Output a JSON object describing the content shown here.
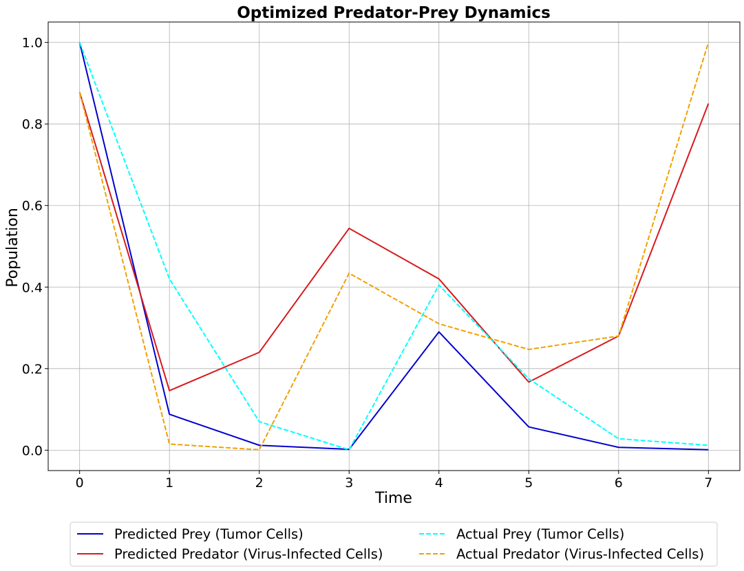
{
  "chart_data": {
    "type": "line",
    "title": "Optimized Predator-Prey Dynamics",
    "xlabel": "Time",
    "ylabel": "Population",
    "x": [
      0,
      1,
      2,
      3,
      4,
      5,
      6,
      7
    ],
    "xlim": [
      -0.35,
      7.35
    ],
    "ylim": [
      -0.05,
      1.05
    ],
    "xticks": [
      "0",
      "1",
      "2",
      "3",
      "4",
      "5",
      "6",
      "7"
    ],
    "yticks": [
      "0.0",
      "0.2",
      "0.4",
      "0.6",
      "0.8",
      "1.0"
    ],
    "grid": true,
    "legend_position": "bottom-center",
    "series": [
      {
        "name": "Predicted Prey (Tumor Cells)",
        "color": "#0000cd",
        "style": "solid",
        "values": [
          1.0,
          0.088,
          0.012,
          0.002,
          0.29,
          0.057,
          0.007,
          0.001
        ]
      },
      {
        "name": "Predicted Predator (Virus-Infected Cells)",
        "color": "#d7191c",
        "style": "solid",
        "values": [
          0.878,
          0.146,
          0.24,
          0.544,
          0.42,
          0.167,
          0.28,
          0.85
        ]
      },
      {
        "name": "Actual Prey (Tumor Cells)",
        "color": "#00ffff",
        "style": "dashed",
        "values": [
          1.0,
          0.42,
          0.07,
          0.001,
          0.405,
          0.175,
          0.028,
          0.012
        ]
      },
      {
        "name": "Actual Predator (Virus-Infected Cells)",
        "color": "#f0a000",
        "style": "dashed",
        "values": [
          0.878,
          0.015,
          0.001,
          0.434,
          0.31,
          0.247,
          0.28,
          1.0
        ]
      }
    ]
  }
}
